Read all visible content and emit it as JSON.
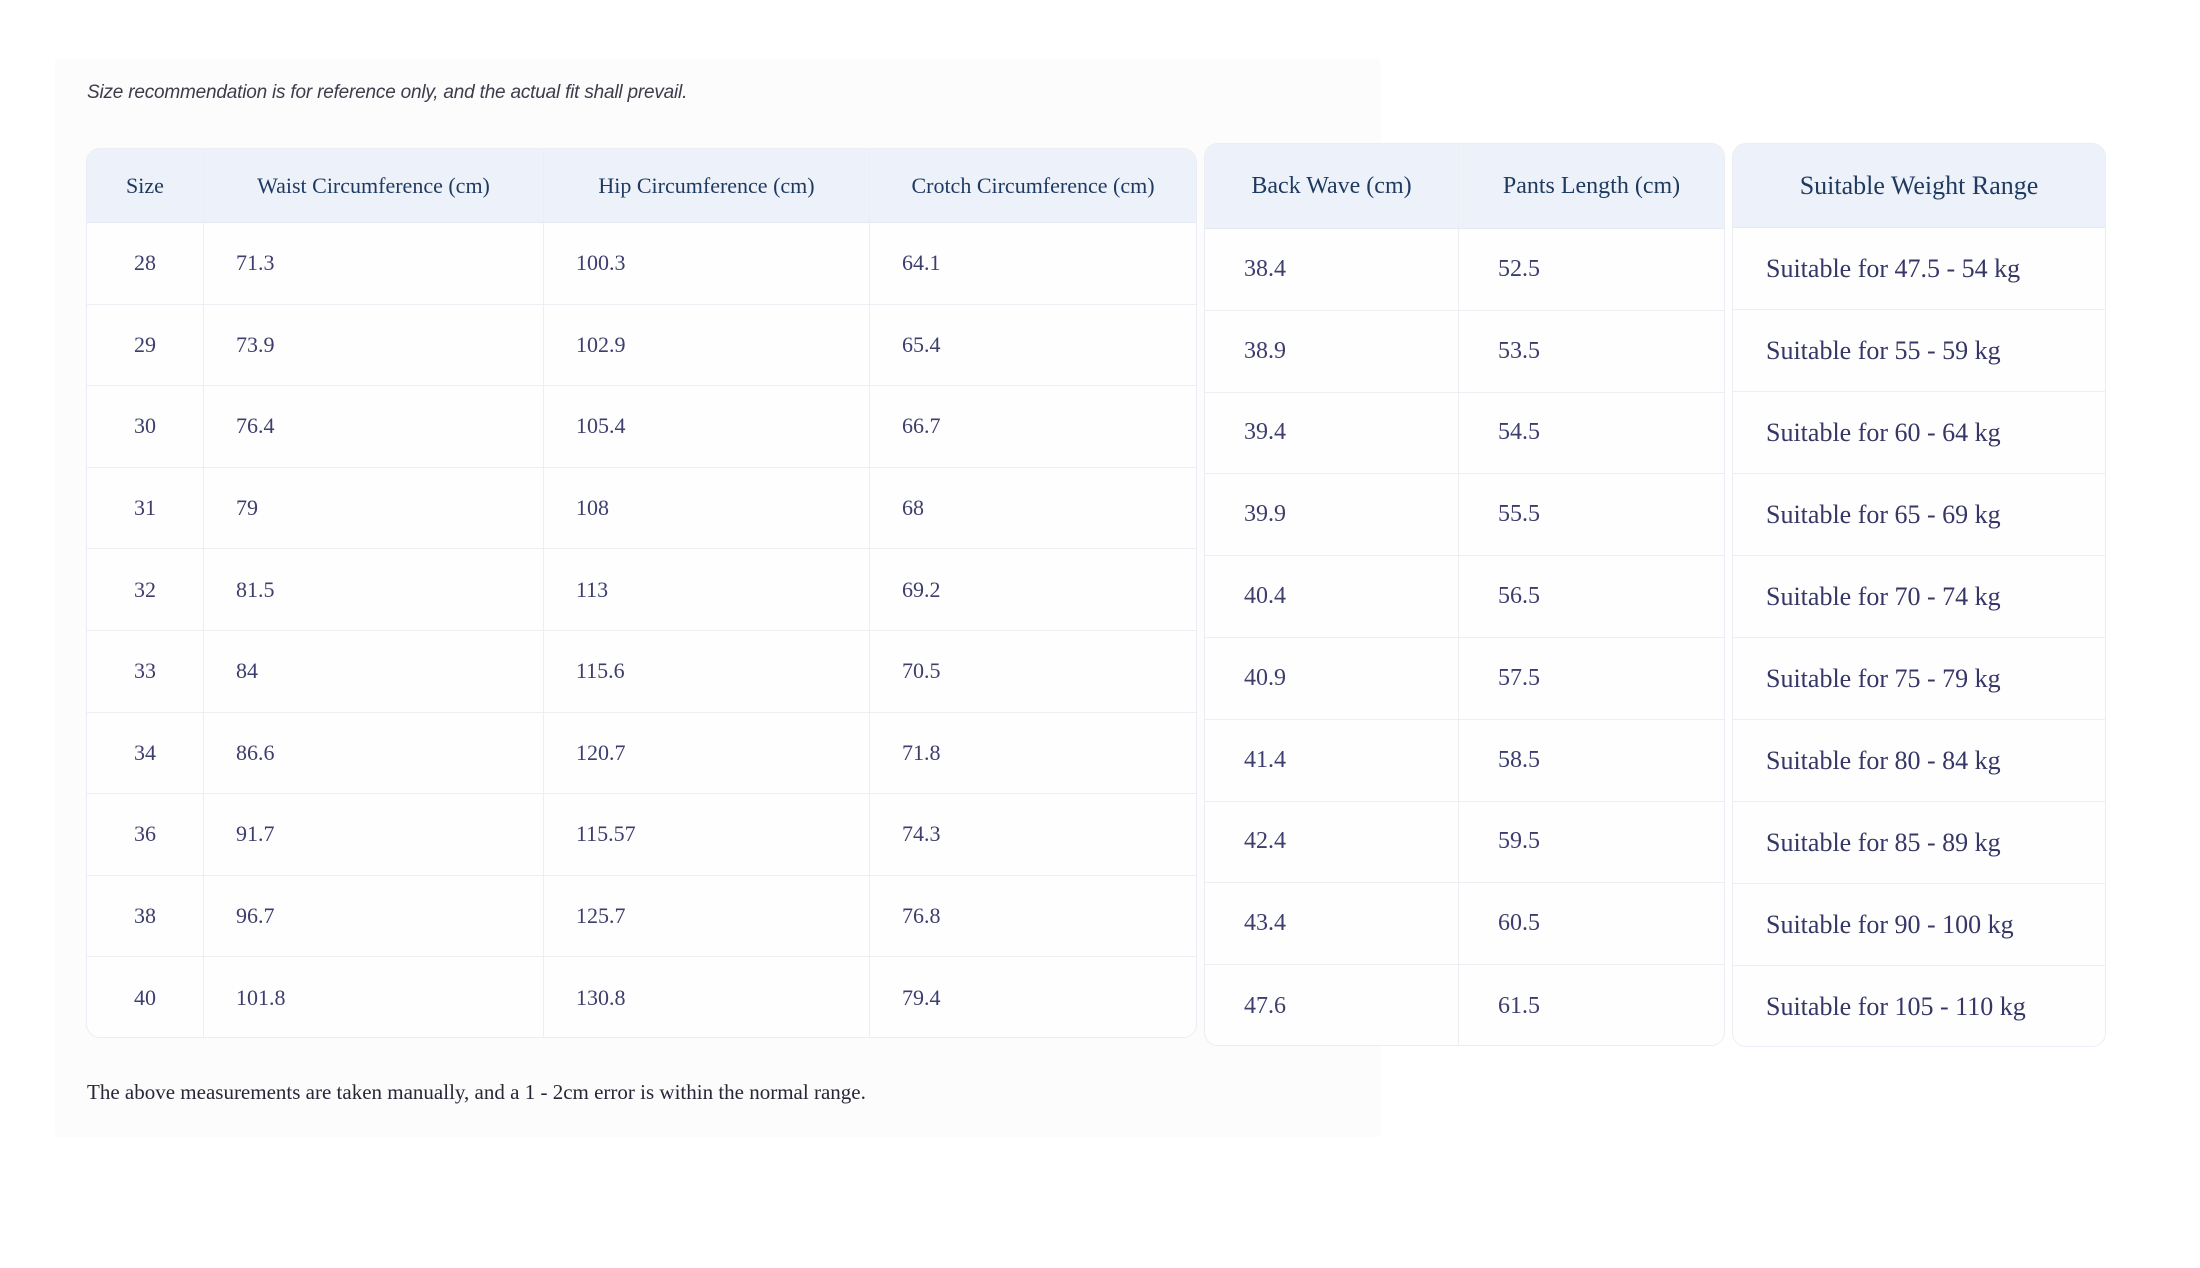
{
  "notes": {
    "top": "Size recommendation is for reference only, and the actual fit shall prevail.",
    "bottom": "The above measurements are taken manually, and a 1 - 2cm error is within the normal range."
  },
  "colors": {
    "header_bg": "#edf1fa",
    "header_text": "#1e3a5f",
    "data_text": "#3d3d6e",
    "border": "#ededf4",
    "card_bg": "#fcfcfd"
  },
  "table": {
    "sections": [
      {
        "id": "sec-measure",
        "name": "size-measurements-table",
        "columns": [
          "Size",
          "Waist Circumference (cm)",
          "Hip Circumference (cm)",
          "Crotch Circumference (cm)"
        ],
        "rows": [
          [
            "28",
            "71.3",
            "100.3",
            "64.1"
          ],
          [
            "29",
            "73.9",
            "102.9",
            "65.4"
          ],
          [
            "30",
            "76.4",
            "105.4",
            "66.7"
          ],
          [
            "31",
            "79",
            "108",
            "68"
          ],
          [
            "32",
            "81.5",
            "113",
            "69.2"
          ],
          [
            "33",
            "84",
            "115.6",
            "70.5"
          ],
          [
            "34",
            "86.6",
            "120.7",
            "71.8"
          ],
          [
            "36",
            "91.7",
            "115.57",
            "74.3"
          ],
          [
            "38",
            "96.7",
            "125.7",
            "76.8"
          ],
          [
            "40",
            "101.8",
            "130.8",
            "79.4"
          ]
        ]
      },
      {
        "id": "sec-back",
        "name": "back-wave-pants-length-table",
        "columns": [
          "Back Wave (cm)",
          "Pants Length (cm)"
        ],
        "rows": [
          [
            "38.4",
            "52.5"
          ],
          [
            "38.9",
            "53.5"
          ],
          [
            "39.4",
            "54.5"
          ],
          [
            "39.9",
            "55.5"
          ],
          [
            "40.4",
            "56.5"
          ],
          [
            "40.9",
            "57.5"
          ],
          [
            "41.4",
            "58.5"
          ],
          [
            "42.4",
            "59.5"
          ],
          [
            "43.4",
            "60.5"
          ],
          [
            "47.6",
            "61.5"
          ]
        ]
      },
      {
        "id": "sec-weight",
        "name": "suitable-weight-range-table",
        "columns": [
          "Suitable Weight Range"
        ],
        "rows": [
          [
            "Suitable for 47.5 - 54 kg"
          ],
          [
            "Suitable for 55 - 59 kg"
          ],
          [
            "Suitable for 60 - 64 kg"
          ],
          [
            "Suitable for 65 - 69 kg"
          ],
          [
            "Suitable for 70 - 74 kg"
          ],
          [
            "Suitable for 75 - 79 kg"
          ],
          [
            "Suitable for 80 - 84 kg"
          ],
          [
            "Suitable for 85 - 89 kg"
          ],
          [
            "Suitable for 90 - 100 kg"
          ],
          [
            "Suitable for 105 - 110 kg"
          ]
        ]
      }
    ]
  }
}
